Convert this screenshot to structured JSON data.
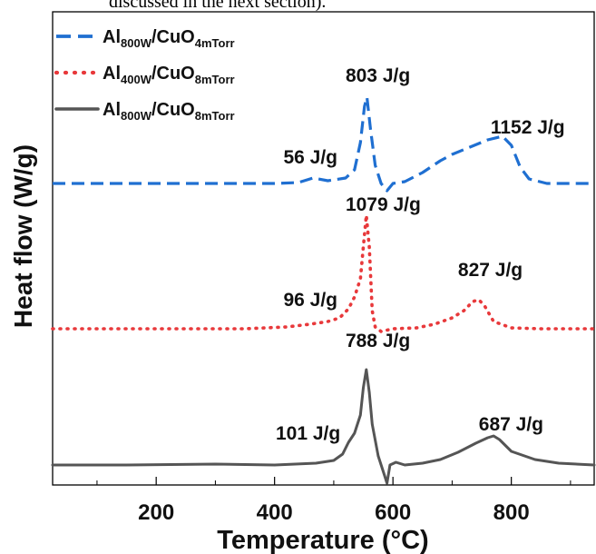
{
  "caption_fragment": "discussed in the next section).",
  "chart_data": {
    "type": "line",
    "title": "",
    "xlabel": "Temperature (°C)",
    "ylabel": "Heat flow (W/g)",
    "xlim": [
      25,
      940
    ],
    "x_ticks": [
      200,
      400,
      600,
      800
    ],
    "grid": false,
    "legend_position": "top-left",
    "series": [
      {
        "name_main": "Al",
        "name_sub1": "800W",
        "name_mid": "/CuO",
        "name_sub2": "4mTorr",
        "color": "#1f6fd1",
        "dash": "dashed",
        "offset": 0,
        "x": [
          25,
          200,
          300,
          400,
          440,
          465,
          490,
          520,
          535,
          545,
          552,
          556,
          562,
          570,
          580,
          590,
          600,
          620,
          650,
          680,
          700,
          730,
          760,
          785,
          800,
          815,
          830,
          860,
          900,
          940
        ],
        "y": [
          0,
          0,
          0,
          0,
          0.01,
          0.06,
          0.03,
          0.06,
          0.15,
          0.45,
          0.85,
          0.95,
          0.6,
          0.2,
          0,
          -0.08,
          0,
          0.02,
          0.12,
          0.25,
          0.32,
          0.4,
          0.48,
          0.52,
          0.42,
          0.18,
          0.05,
          0,
          0,
          0
        ]
      },
      {
        "name_main": "Al",
        "name_sub1": "400W",
        "name_mid": "/CuO",
        "name_sub2": "8mTorr",
        "color": "#e8393b",
        "dash": "dotted",
        "offset": -1.6,
        "x": [
          25,
          200,
          350,
          420,
          460,
          490,
          510,
          525,
          535,
          545,
          550,
          555,
          560,
          565,
          570,
          580,
          600,
          640,
          670,
          700,
          720,
          735,
          745,
          755,
          770,
          800,
          850,
          940
        ],
        "y": [
          0,
          0,
          0,
          0.02,
          0.05,
          0.08,
          0.12,
          0.22,
          0.35,
          0.55,
          0.9,
          1.25,
          0.9,
          0.2,
          0.02,
          -0.03,
          0,
          0.01,
          0.05,
          0.12,
          0.2,
          0.3,
          0.32,
          0.25,
          0.08,
          0.01,
          0,
          0
        ]
      },
      {
        "name_main": "Al",
        "name_sub1": "800W",
        "name_mid": "/CuO",
        "name_sub2": "8mTorr",
        "color": "#555555",
        "dash": "solid",
        "offset": -3.1,
        "x": [
          25,
          150,
          300,
          400,
          470,
          500,
          515,
          525,
          535,
          545,
          550,
          555,
          560,
          565,
          575,
          585,
          590,
          595,
          605,
          620,
          650,
          680,
          710,
          740,
          760,
          770,
          780,
          800,
          840,
          880,
          940
        ],
        "y": [
          0,
          0,
          0.01,
          0,
          0.02,
          0.05,
          0.12,
          0.25,
          0.35,
          0.55,
          0.85,
          1.05,
          0.8,
          0.45,
          0.1,
          -0.1,
          -0.2,
          0,
          0.03,
          0,
          0.02,
          0.06,
          0.14,
          0.24,
          0.3,
          0.32,
          0.28,
          0.15,
          0.06,
          0.02,
          0
        ]
      }
    ],
    "annotations": [
      {
        "text": "803 J/g",
        "x": 520,
        "y": 1.12
      },
      {
        "text": "56 J/g",
        "x": 415,
        "y": 0.22
      },
      {
        "text": "1152 J/g",
        "x": 765,
        "y": 0.55
      },
      {
        "text": "1079 J/g",
        "x": 520,
        "y": -0.3
      },
      {
        "text": "96 J/g",
        "x": 415,
        "y": -1.35
      },
      {
        "text": "827 J/g",
        "x": 710,
        "y": -1.02
      },
      {
        "text": "788 J/g",
        "x": 520,
        "y": -1.8
      },
      {
        "text": "101 J/g",
        "x": 402,
        "y": -2.82
      },
      {
        "text": "687 J/g",
        "x": 745,
        "y": -2.72
      }
    ]
  }
}
